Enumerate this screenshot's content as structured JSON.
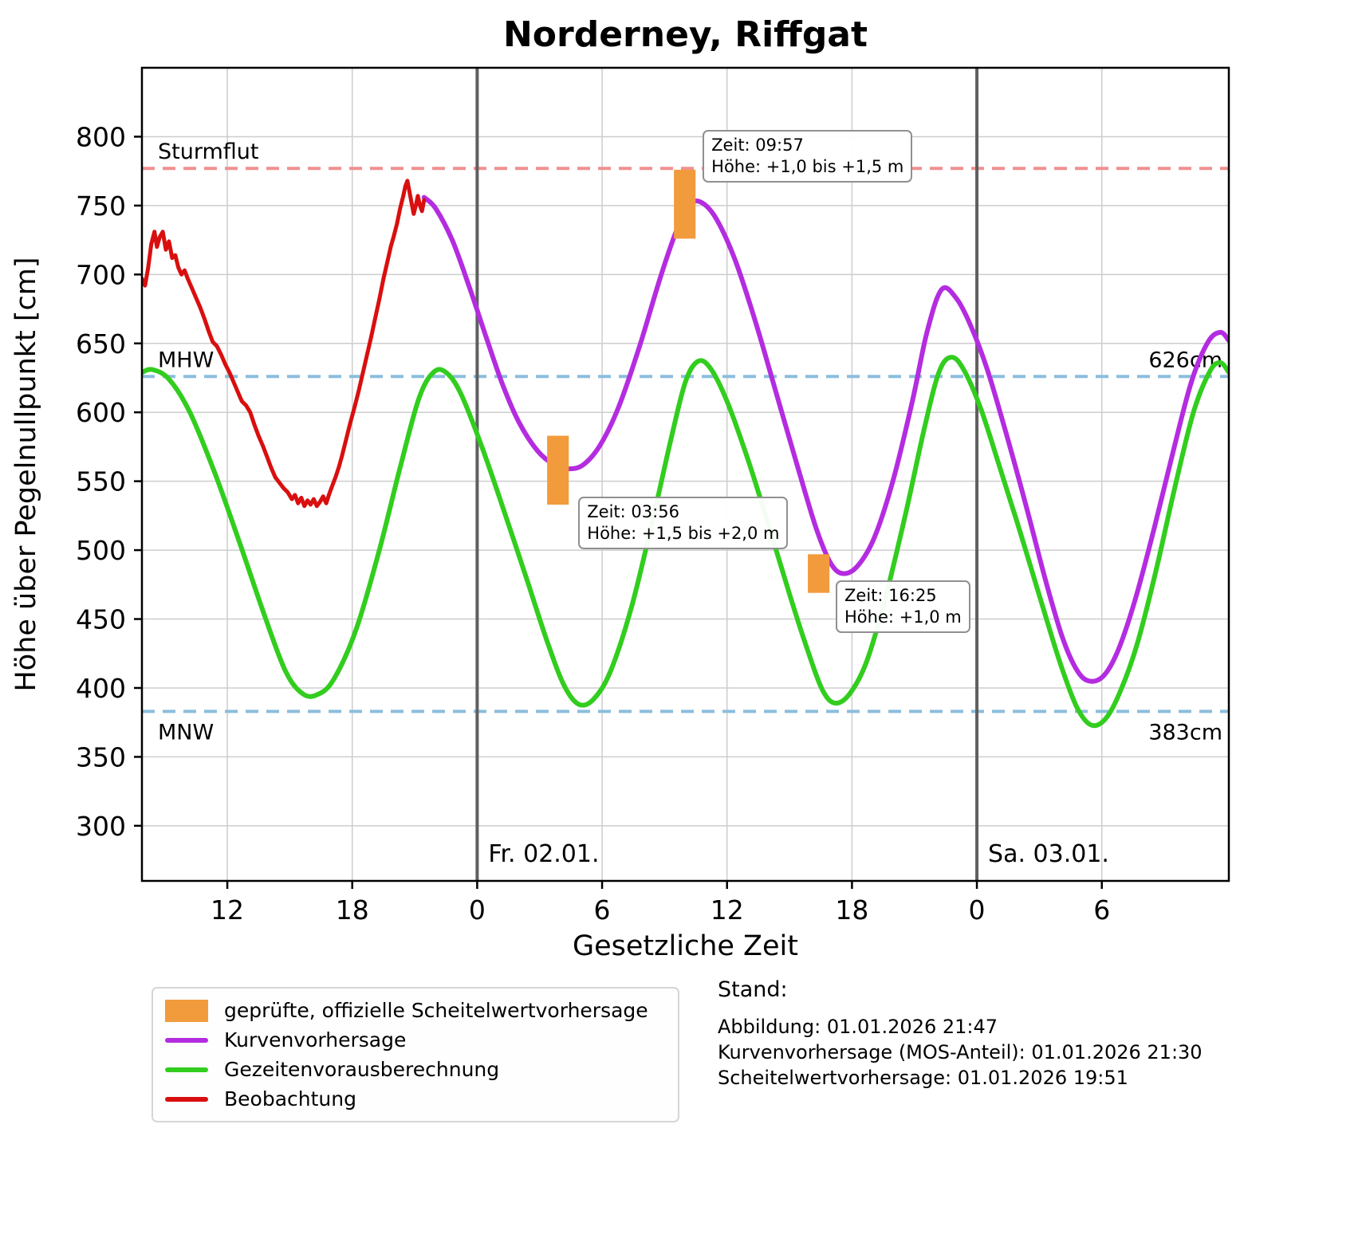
{
  "colors": {
    "observation": "#d90f0f",
    "forecast": "#b42ce0",
    "tide": "#32cd1e",
    "peak": "#f29b3d",
    "sturmflut": "#f09090",
    "mean_line": "#8cbedd",
    "day_line": "#5f5f5f",
    "grid": "#cdcdcd"
  },
  "chart_data": {
    "type": "line",
    "title": "Norderney, Riffgat",
    "xlabel": "Gesetzliche Zeit",
    "ylabel": "Höhe über Pegelnullpunkt [cm]",
    "xlim": [
      7.9,
      60.1
    ],
    "ylim": [
      260,
      850
    ],
    "x_unit": "hours since 01.01. 00:00",
    "grid": true,
    "xticks": {
      "positions": [
        12,
        18,
        24,
        30,
        36,
        42,
        48,
        54
      ],
      "labels": [
        "12",
        "18",
        "0",
        "6",
        "12",
        "18",
        "0",
        "6"
      ]
    },
    "yticks": [
      300,
      350,
      400,
      450,
      500,
      550,
      600,
      650,
      700,
      750,
      800
    ],
    "reference_lines": [
      {
        "name": "sturmflut",
        "value": 777,
        "color_key": "sturmflut",
        "left_label": "Sturmflut",
        "right_label": "",
        "label_below": false
      },
      {
        "name": "mhw",
        "value": 626,
        "color_key": "mean_line",
        "left_label": "MHW",
        "right_label": "626cm",
        "label_below": false
      },
      {
        "name": "mnw",
        "value": 383,
        "color_key": "mean_line",
        "left_label": "MNW",
        "right_label": "383cm",
        "label_below": true
      }
    ],
    "day_lines": [
      {
        "x": 24,
        "label": "Fr. 02.01."
      },
      {
        "x": 48,
        "label": "Sa. 03.01."
      }
    ],
    "series": [
      {
        "name": "Gezeitenvorausberechnung",
        "color_key": "tide",
        "width": 6,
        "smooth": true,
        "points": [
          [
            7.9,
            629
          ],
          [
            8.4,
            631
          ],
          [
            9.2,
            624
          ],
          [
            10.2,
            600
          ],
          [
            11.4,
            556
          ],
          [
            12.6,
            505
          ],
          [
            13.8,
            452
          ],
          [
            14.8,
            412
          ],
          [
            15.6,
            396
          ],
          [
            16.3,
            395
          ],
          [
            17.1,
            406
          ],
          [
            18.2,
            443
          ],
          [
            19.3,
            500
          ],
          [
            20.3,
            560
          ],
          [
            21.2,
            610
          ],
          [
            21.9,
            629
          ],
          [
            22.5,
            629
          ],
          [
            23.2,
            614
          ],
          [
            24.2,
            576
          ],
          [
            25.3,
            528
          ],
          [
            26.4,
            478
          ],
          [
            27.4,
            432
          ],
          [
            28.2,
            401
          ],
          [
            28.9,
            388
          ],
          [
            29.6,
            392
          ],
          [
            30.4,
            412
          ],
          [
            31.4,
            458
          ],
          [
            32.4,
            520
          ],
          [
            33.3,
            580
          ],
          [
            34,
            622
          ],
          [
            34.6,
            637
          ],
          [
            35.2,
            632
          ],
          [
            36,
            608
          ],
          [
            37,
            566
          ],
          [
            38,
            518
          ],
          [
            39,
            468
          ],
          [
            39.9,
            426
          ],
          [
            40.6,
            398
          ],
          [
            41.2,
            389
          ],
          [
            41.9,
            396
          ],
          [
            42.7,
            419
          ],
          [
            43.6,
            465
          ],
          [
            44.6,
            528
          ],
          [
            45.5,
            590
          ],
          [
            46.2,
            630
          ],
          [
            46.8,
            640
          ],
          [
            47.4,
            630
          ],
          [
            48.2,
            602
          ],
          [
            49.1,
            560
          ],
          [
            50.1,
            512
          ],
          [
            51.1,
            462
          ],
          [
            52,
            418
          ],
          [
            52.8,
            386
          ],
          [
            53.5,
            373
          ],
          [
            54.2,
            378
          ],
          [
            54.9,
            398
          ],
          [
            55.7,
            432
          ],
          [
            56.6,
            485
          ],
          [
            57.5,
            545
          ],
          [
            58.4,
            600
          ],
          [
            59.2,
            630
          ],
          [
            59.7,
            636
          ],
          [
            60.1,
            629
          ]
        ]
      },
      {
        "name": "Kurvenvorhersage",
        "color_key": "forecast",
        "width": 6,
        "smooth": true,
        "points": [
          [
            21.45,
            756
          ],
          [
            22,
            748
          ],
          [
            22.8,
            725
          ],
          [
            23.6,
            692
          ],
          [
            24.4,
            656
          ],
          [
            25.2,
            621
          ],
          [
            26,
            593
          ],
          [
            26.9,
            572
          ],
          [
            27.7,
            562
          ],
          [
            28.4,
            559
          ],
          [
            29.1,
            562
          ],
          [
            29.9,
            576
          ],
          [
            30.8,
            604
          ],
          [
            31.8,
            648
          ],
          [
            32.8,
            698
          ],
          [
            33.6,
            733
          ],
          [
            34.2,
            751
          ],
          [
            34.8,
            752
          ],
          [
            35.5,
            740
          ],
          [
            36.4,
            710
          ],
          [
            37.4,
            664
          ],
          [
            38.4,
            612
          ],
          [
            39.4,
            560
          ],
          [
            40.3,
            515
          ],
          [
            41,
            490
          ],
          [
            41.6,
            483
          ],
          [
            42.3,
            489
          ],
          [
            43.1,
            510
          ],
          [
            44,
            552
          ],
          [
            44.9,
            608
          ],
          [
            45.6,
            658
          ],
          [
            46.3,
            689
          ],
          [
            47,
            683
          ],
          [
            47.7,
            663
          ],
          [
            48.5,
            631
          ],
          [
            49.4,
            585
          ],
          [
            50.4,
            530
          ],
          [
            51.3,
            478
          ],
          [
            52.1,
            437
          ],
          [
            52.8,
            413
          ],
          [
            53.4,
            405
          ],
          [
            54.1,
            409
          ],
          [
            54.8,
            428
          ],
          [
            55.6,
            464
          ],
          [
            56.5,
            515
          ],
          [
            57.4,
            570
          ],
          [
            58.3,
            622
          ],
          [
            59.1,
            651
          ],
          [
            59.7,
            658
          ],
          [
            60.1,
            652
          ]
        ]
      },
      {
        "name": "Beobachtung",
        "color_key": "observation",
        "width": 5,
        "smooth": false,
        "points": [
          [
            7.9,
            697
          ],
          [
            8.05,
            692
          ],
          [
            8.2,
            705
          ],
          [
            8.35,
            722
          ],
          [
            8.5,
            731
          ],
          [
            8.62,
            720
          ],
          [
            8.75,
            727
          ],
          [
            8.9,
            731
          ],
          [
            9.05,
            718
          ],
          [
            9.2,
            724
          ],
          [
            9.35,
            712
          ],
          [
            9.5,
            714
          ],
          [
            9.65,
            705
          ],
          [
            9.8,
            700
          ],
          [
            9.95,
            703
          ],
          [
            10.1,
            697
          ],
          [
            10.3,
            690
          ],
          [
            10.5,
            683
          ],
          [
            10.7,
            676
          ],
          [
            10.9,
            668
          ],
          [
            11.1,
            659
          ],
          [
            11.3,
            651
          ],
          [
            11.5,
            648
          ],
          [
            11.7,
            642
          ],
          [
            11.9,
            635
          ],
          [
            12.1,
            629
          ],
          [
            12.3,
            622
          ],
          [
            12.5,
            615
          ],
          [
            12.7,
            608
          ],
          [
            12.9,
            605
          ],
          [
            13.1,
            600
          ],
          [
            13.3,
            591
          ],
          [
            13.5,
            583
          ],
          [
            13.7,
            576
          ],
          [
            13.9,
            568
          ],
          [
            14.1,
            560
          ],
          [
            14.3,
            553
          ],
          [
            14.5,
            549
          ],
          [
            14.7,
            545
          ],
          [
            14.9,
            542
          ],
          [
            15.1,
            537
          ],
          [
            15.25,
            540
          ],
          [
            15.4,
            534
          ],
          [
            15.55,
            538
          ],
          [
            15.7,
            532
          ],
          [
            15.85,
            536
          ],
          [
            16,
            533
          ],
          [
            16.15,
            537
          ],
          [
            16.3,
            532
          ],
          [
            16.45,
            535
          ],
          [
            16.6,
            539
          ],
          [
            16.75,
            534
          ],
          [
            16.9,
            541
          ],
          [
            17.05,
            547
          ],
          [
            17.2,
            553
          ],
          [
            17.35,
            560
          ],
          [
            17.5,
            568
          ],
          [
            17.7,
            580
          ],
          [
            17.9,
            592
          ],
          [
            18.1,
            603
          ],
          [
            18.3,
            615
          ],
          [
            18.5,
            628
          ],
          [
            18.7,
            641
          ],
          [
            18.9,
            654
          ],
          [
            19.1,
            668
          ],
          [
            19.3,
            682
          ],
          [
            19.5,
            697
          ],
          [
            19.7,
            710
          ],
          [
            19.85,
            720
          ],
          [
            20,
            728
          ],
          [
            20.15,
            737
          ],
          [
            20.3,
            748
          ],
          [
            20.45,
            757
          ],
          [
            20.55,
            764
          ],
          [
            20.65,
            768
          ],
          [
            20.75,
            760
          ],
          [
            20.85,
            752
          ],
          [
            20.95,
            744
          ],
          [
            21.05,
            750
          ],
          [
            21.15,
            757
          ],
          [
            21.25,
            750
          ],
          [
            21.35,
            746
          ],
          [
            21.45,
            754
          ]
        ]
      }
    ],
    "peak_forecasts": [
      {
        "time": "09:57",
        "x": 33.97,
        "x_halfwidth": 0.52,
        "y_from": 726,
        "y_to": 776,
        "annotation": [
          "Zeit: 09:57",
          "Höhe: +1,0 bis +1,5 m"
        ],
        "annotation_pos": [
          34.83,
          805
        ]
      },
      {
        "time": "03:56",
        "x": 27.88,
        "x_halfwidth": 0.52,
        "y_from": 533,
        "y_to": 583,
        "annotation": [
          "Zeit: 03:56",
          "Höhe: +1,5 bis +2,0 m"
        ],
        "annotation_pos": [
          28.86,
          539
        ]
      },
      {
        "time": "16:25",
        "x": 40.4,
        "x_halfwidth": 0.52,
        "y_from": 469,
        "y_to": 497,
        "annotation": [
          "Zeit: 16:25",
          "Höhe: +1,0 m"
        ],
        "annotation_pos": [
          41.22,
          478
        ]
      }
    ]
  },
  "legend": {
    "items": [
      {
        "swatch": "bar",
        "color_key": "peak",
        "label": "geprüfte, offizielle Scheitelwertvorhersage"
      },
      {
        "swatch": "line",
        "color_key": "forecast",
        "label": "Kurvenvorhersage"
      },
      {
        "swatch": "line",
        "color_key": "tide",
        "label": "Gezeitenvorausberechnung"
      },
      {
        "swatch": "line",
        "color_key": "observation",
        "label": "Beobachtung"
      }
    ]
  },
  "stand": {
    "heading": "Stand:",
    "lines": [
      "Abbildung: 01.01.2026 21:47",
      "Kurvenvorhersage (MOS-Anteil): 01.01.2026 21:30",
      "Scheitelwertvorhersage: 01.01.2026 19:51"
    ]
  }
}
